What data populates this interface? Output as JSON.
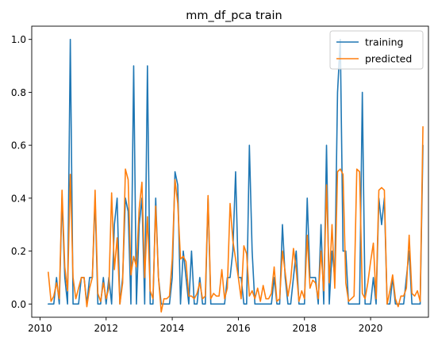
{
  "chart_data": {
    "type": "line",
    "title": "mm_df_pca train",
    "xlabel": "",
    "ylabel": "",
    "xlim": [
      2009.75,
      2021.75
    ],
    "ylim": [
      -0.05,
      1.05
    ],
    "x_ticks": [
      2010,
      2012,
      2014,
      2016,
      2018,
      2020
    ],
    "y_ticks": [
      0.0,
      0.2,
      0.4,
      0.6,
      0.8,
      1.0
    ],
    "x_tick_labels": [
      "2010",
      "2012",
      "2014",
      "2016",
      "2018",
      "2020"
    ],
    "y_tick_labels": [
      "0.0",
      "0.2",
      "0.4",
      "0.6",
      "0.8",
      "1.0"
    ],
    "legend_position": "upper-right",
    "grid": false,
    "x_start": 2010.25,
    "x_step": 0.0833333,
    "series": [
      {
        "name": "training",
        "color": "#1f77b4",
        "values": [
          0,
          0,
          0,
          0.1,
          0,
          0.4,
          0.1,
          0,
          1,
          0,
          0,
          0,
          0.1,
          0.1,
          0,
          0.1,
          0.1,
          0.4,
          0,
          0,
          0.1,
          0,
          0.1,
          0,
          0.3,
          0.4,
          0,
          0.1,
          0.4,
          0.35,
          0,
          0.9,
          0,
          0.3,
          0.4,
          0,
          0.9,
          0,
          0,
          0.4,
          0.1,
          0,
          0,
          0,
          0,
          0.1,
          0.5,
          0.45,
          0,
          0.2,
          0.1,
          0,
          0.2,
          0,
          0,
          0.1,
          0,
          0,
          0.4,
          0,
          0,
          0,
          0,
          0,
          0,
          0.1,
          0.1,
          0.2,
          0.5,
          0.1,
          0.1,
          0,
          0,
          0.6,
          0.2,
          0,
          0,
          0,
          0,
          0,
          0,
          0,
          0.1,
          0,
          0,
          0.3,
          0.1,
          0,
          0,
          0.1,
          0.2,
          0,
          0,
          0,
          0.4,
          0.1,
          0.1,
          0.1,
          0,
          0.3,
          0,
          0.6,
          0,
          0.2,
          0.1,
          0.8,
          1,
          0.2,
          0.2,
          0,
          0,
          0,
          0,
          0,
          0.8,
          0,
          0,
          0,
          0.1,
          0,
          0.4,
          0.3,
          0.4,
          0,
          0,
          0.1,
          0,
          0,
          0,
          0,
          0.1,
          0.2,
          0,
          0,
          0,
          0,
          0.6
        ],
        "data_points_note": ""
      },
      {
        "name": "predicted",
        "color": "#ff7f0e",
        "values": [
          0.12,
          0.01,
          0.03,
          0.08,
          0.02,
          0.43,
          0.14,
          0.05,
          0.49,
          0.1,
          0.02,
          0.06,
          0.1,
          0.1,
          -0.01,
          0.06,
          0.1,
          0.43,
          0.04,
          0.01,
          0.08,
          0.02,
          0.06,
          0.42,
          0.13,
          0.25,
          0,
          0.08,
          0.51,
          0.47,
          0.11,
          0.18,
          0.14,
          0.36,
          0.46,
          0.1,
          0.33,
          0.05,
          0.02,
          0.37,
          0.1,
          -0.03,
          0.02,
          0.02,
          0.03,
          0.17,
          0.47,
          0.38,
          0.17,
          0.18,
          0.16,
          0.03,
          0.03,
          0.02,
          0.04,
          0.08,
          0.02,
          0.03,
          0.41,
          0.02,
          0.04,
          0.03,
          0.03,
          0.13,
          0.02,
          0.06,
          0.38,
          0.24,
          0.17,
          0.1,
          0.02,
          0.22,
          0.19,
          0.03,
          0.05,
          0.02,
          0.06,
          0.01,
          0.07,
          0.02,
          0.02,
          0.04,
          0.14,
          0.01,
          0.02,
          0.2,
          0.12,
          0.03,
          0.09,
          0.21,
          0.13,
          0.01,
          0.05,
          0.02,
          0.26,
          0.06,
          0.09,
          0.08,
          0.02,
          0.2,
          0.05,
          0.45,
          0.08,
          0.3,
          0.06,
          0.5,
          0.51,
          0.49,
          0.08,
          0.01,
          0.02,
          0.03,
          0.51,
          0.5,
          0.04,
          0.02,
          0.08,
          0.16,
          0.23,
          0.02,
          0.43,
          0.44,
          0.43,
          0,
          0.05,
          0.11,
          0.02,
          -0.01,
          0.03,
          0.03,
          0.06,
          0.26,
          0.04,
          0.03,
          0.05,
          0.01,
          0.67
        ]
      }
    ]
  }
}
